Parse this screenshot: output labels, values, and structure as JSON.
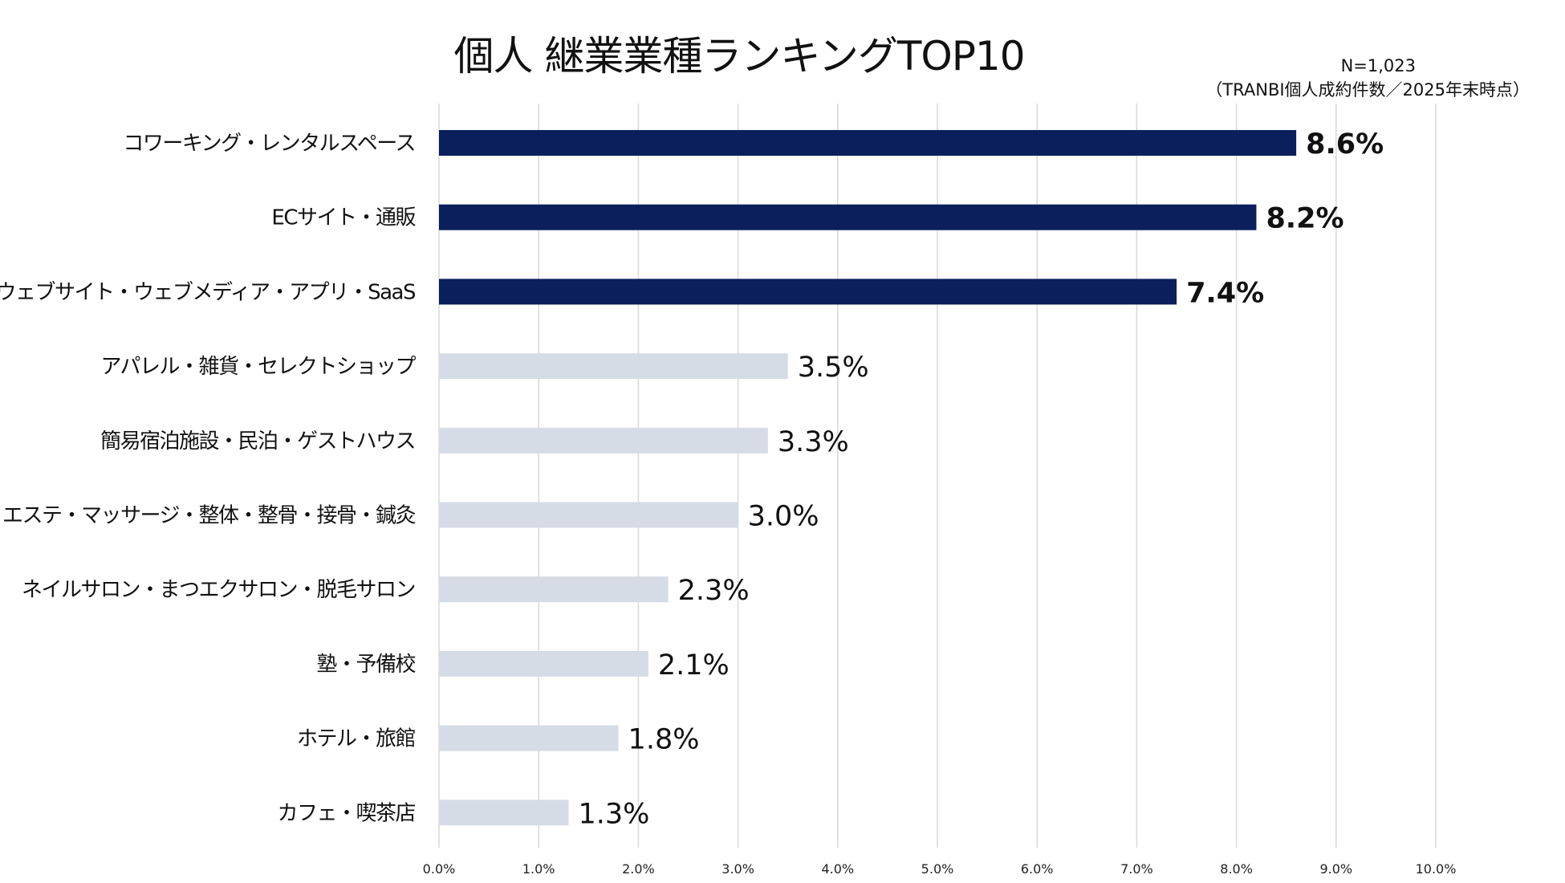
{
  "chart_data": {
    "type": "bar",
    "orientation": "horizontal",
    "title": "個人 継業業種ランキングTOP10",
    "notes": [
      "N=1,023",
      "（TRANBI個人成約件数／2025年末時点）"
    ],
    "categories": [
      "コワーキング・レンタルスペース",
      "ECサイト・通販",
      "ウェブサイト・ウェブメディア・アプリ・SaaS",
      "アパレル・雑貨・セレクトショップ",
      "簡易宿泊施設・民泊・ゲストハウス",
      "エステ・マッサージ・整体・整骨・接骨・鍼灸",
      "ネイルサロン・まつエクサロン・脱毛サロン",
      "塾・予備校",
      "ホテル・旅館",
      "カフェ・喫茶店"
    ],
    "values": [
      8.6,
      8.2,
      7.4,
      3.5,
      3.3,
      3.0,
      2.3,
      2.1,
      1.8,
      1.3
    ],
    "data_labels": [
      "8.6%",
      "8.2%",
      "7.4%",
      "3.5%",
      "3.3%",
      "3.0%",
      "2.3%",
      "2.1%",
      "1.8%",
      "1.3%"
    ],
    "highlighted_top": 3,
    "xlim": [
      0,
      10
    ],
    "x_ticks": [
      "0.0%",
      "1.0%",
      "2.0%",
      "3.0%",
      "4.0%",
      "5.0%",
      "6.0%",
      "7.0%",
      "8.0%",
      "9.0%",
      "10.0%"
    ],
    "grid": "vertical",
    "colors": {
      "highlight": "#0b1f5c",
      "normal": "#d6dce5",
      "grid": "#d9d9d9"
    }
  }
}
